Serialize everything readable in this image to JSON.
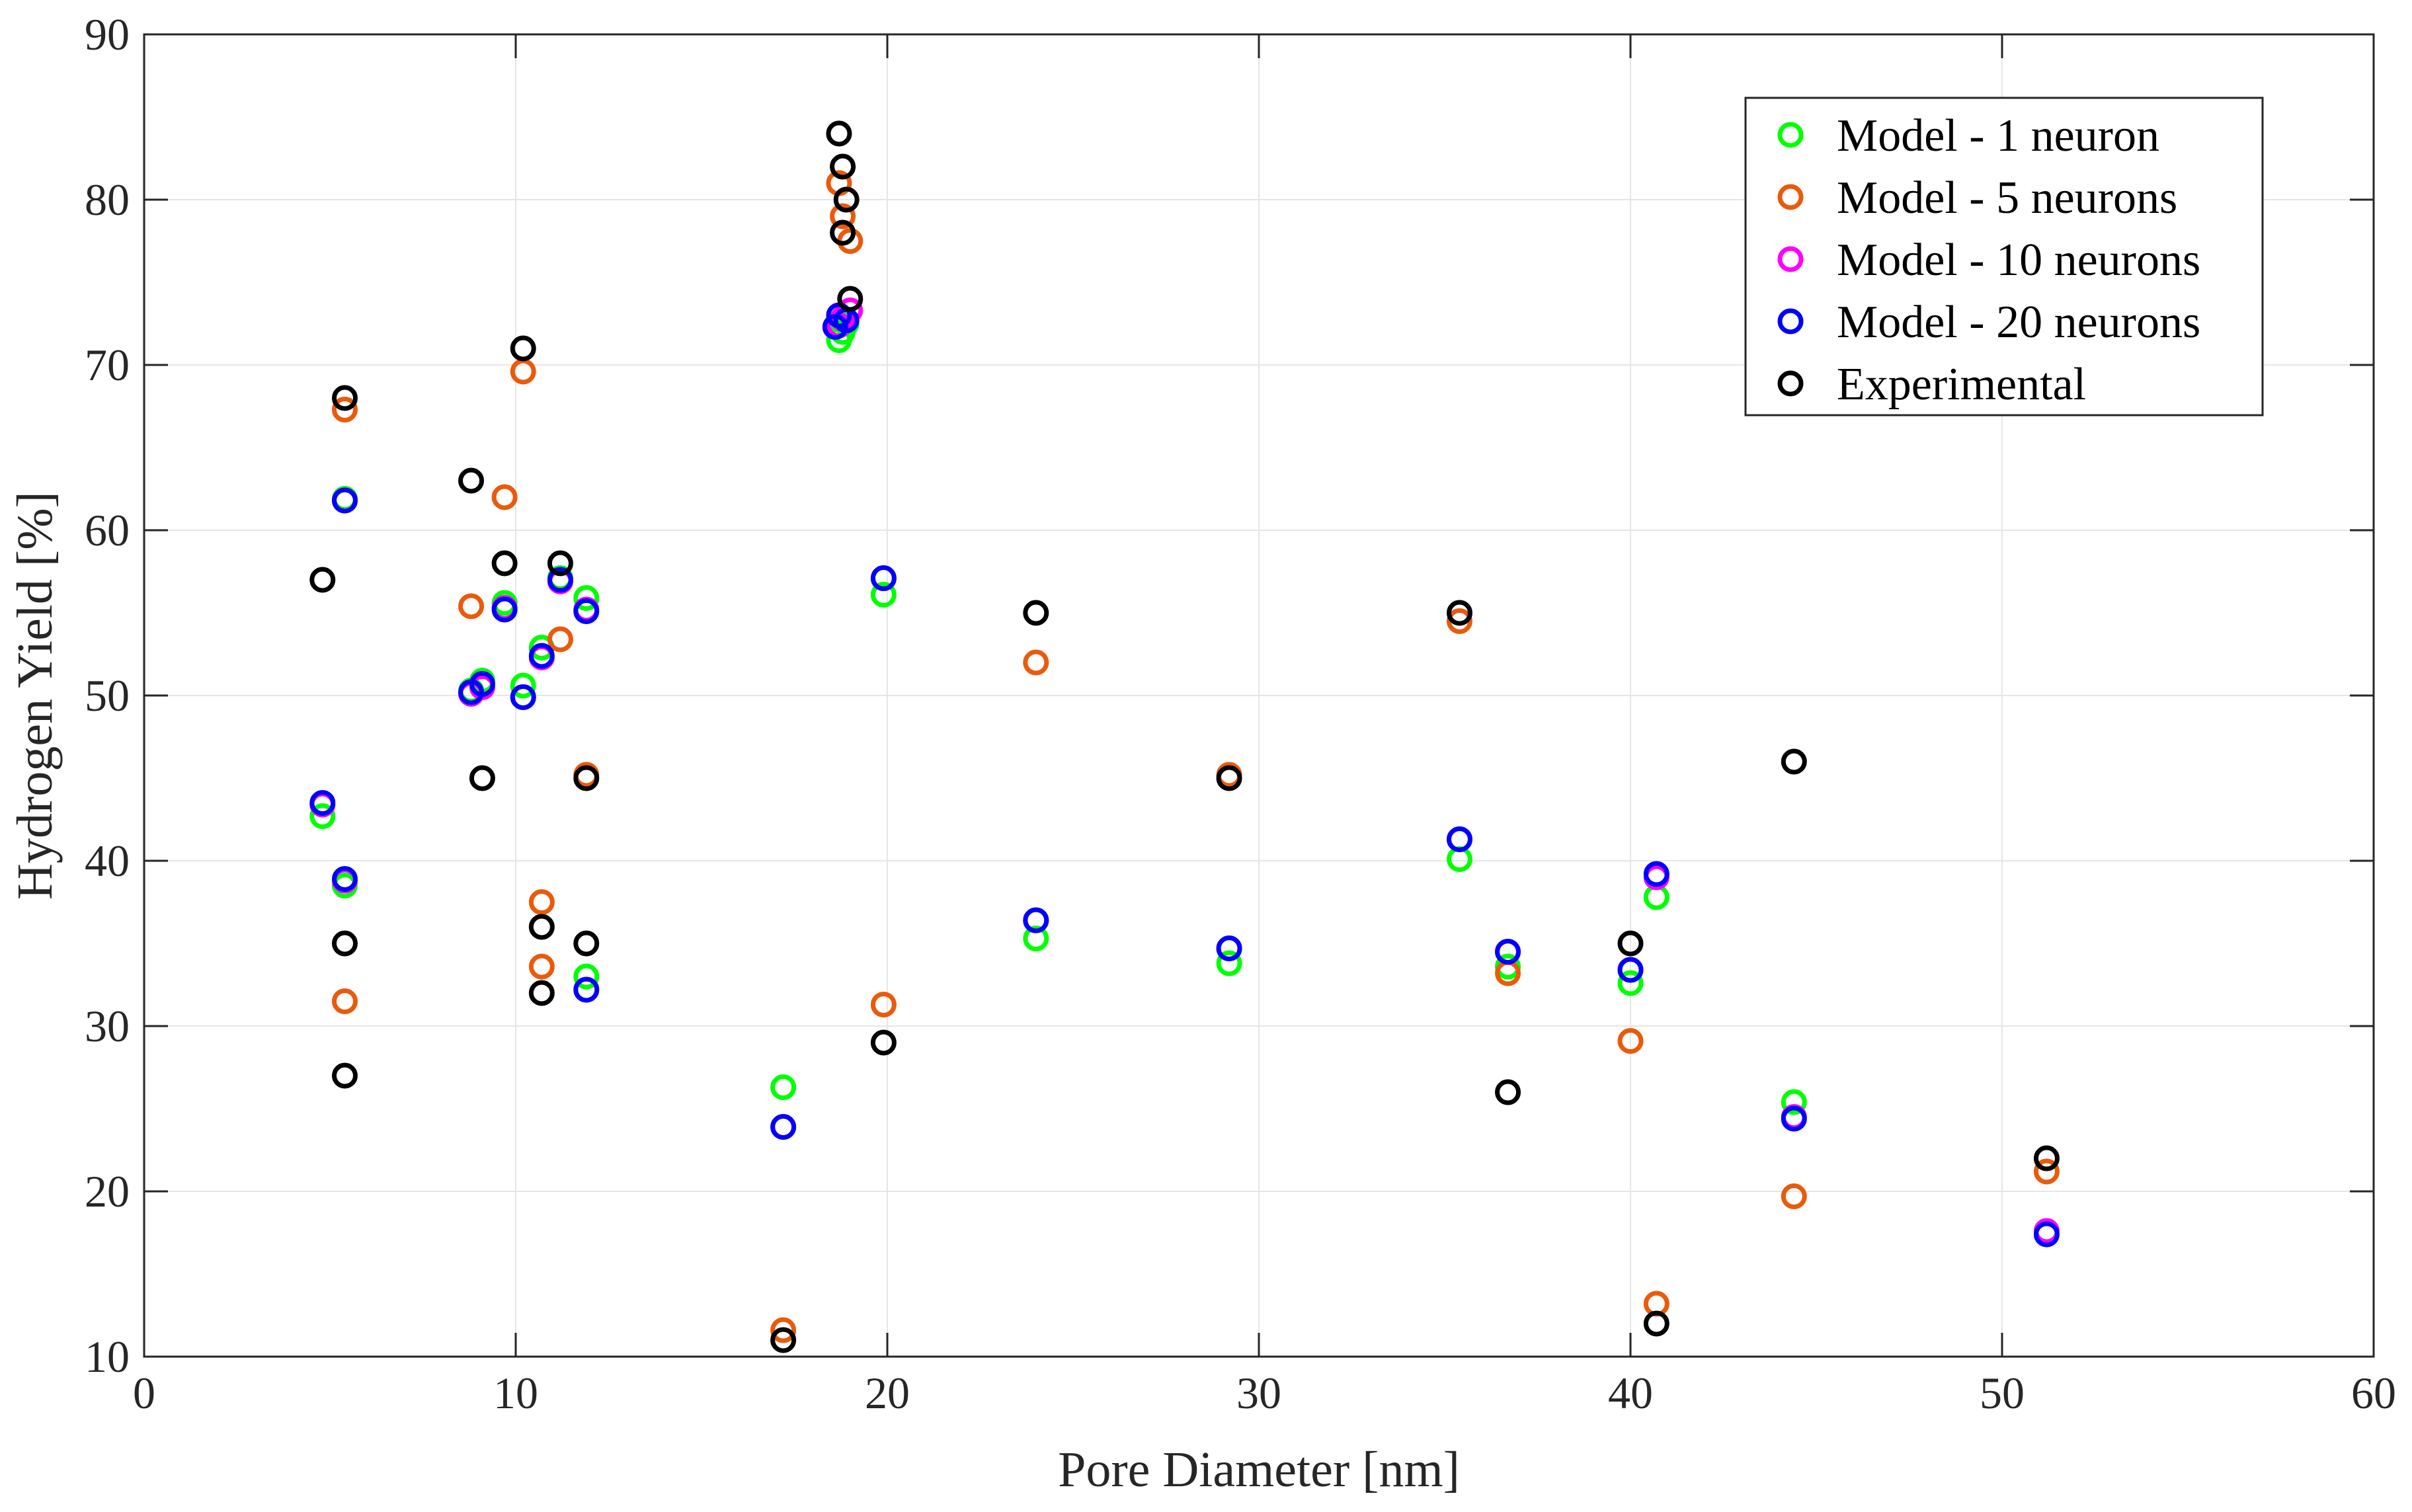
{
  "chart_data": {
    "type": "scatter",
    "title": "",
    "xlabel": "Pore Diameter [nm]",
    "ylabel": "Hydrogen Yield [%]",
    "xlim": [
      0,
      60
    ],
    "ylim": [
      10,
      90
    ],
    "xticks": [
      0,
      10,
      20,
      30,
      40,
      50,
      60
    ],
    "yticks": [
      10,
      20,
      30,
      40,
      50,
      60,
      70,
      80,
      90
    ],
    "xtick_labels": [
      "0",
      "10",
      "20",
      "30",
      "40",
      "50",
      "60"
    ],
    "ytick_labels": [
      "10",
      "20",
      "30",
      "40",
      "50",
      "60",
      "70",
      "80",
      "90"
    ],
    "grid": true,
    "legend_position": "top-right",
    "series": [
      {
        "name": "Model - 1 neuron",
        "color": "#00ff00",
        "points": [
          [
            4.8,
            42.7
          ],
          [
            5.4,
            38.5
          ],
          [
            5.4,
            61.9
          ],
          [
            8.8,
            50.3
          ],
          [
            9.1,
            50.9
          ],
          [
            9.7,
            55.6
          ],
          [
            10.2,
            50.6
          ],
          [
            10.7,
            52.9
          ],
          [
            11.2,
            57.1
          ],
          [
            11.9,
            55.9
          ],
          [
            11.9,
            33.0
          ],
          [
            17.2,
            26.3
          ],
          [
            18.7,
            71.5
          ],
          [
            18.8,
            72.0
          ],
          [
            18.9,
            72.5
          ],
          [
            19.9,
            56.1
          ],
          [
            24.0,
            35.3
          ],
          [
            29.2,
            33.8
          ],
          [
            35.4,
            40.1
          ],
          [
            36.7,
            33.6
          ],
          [
            40.0,
            32.6
          ],
          [
            40.7,
            37.8
          ],
          [
            44.4,
            25.4
          ],
          [
            51.2,
            17.6
          ]
        ]
      },
      {
        "name": "Model - 5 neurons",
        "color": "#ea5a0b",
        "points": [
          [
            5.4,
            67.3
          ],
          [
            5.4,
            31.5
          ],
          [
            8.8,
            55.4
          ],
          [
            9.7,
            62.0
          ],
          [
            10.2,
            69.6
          ],
          [
            10.7,
            37.5
          ],
          [
            10.7,
            33.6
          ],
          [
            11.2,
            53.4
          ],
          [
            11.9,
            45.2
          ],
          [
            17.2,
            11.6
          ],
          [
            18.7,
            81.0
          ],
          [
            18.8,
            79.0
          ],
          [
            19.0,
            77.5
          ],
          [
            19.9,
            31.3
          ],
          [
            24.0,
            52.0
          ],
          [
            29.2,
            45.2
          ],
          [
            35.4,
            54.5
          ],
          [
            36.7,
            33.2
          ],
          [
            40.0,
            29.1
          ],
          [
            40.7,
            13.2
          ],
          [
            44.4,
            19.7
          ],
          [
            51.2,
            21.2
          ]
        ]
      },
      {
        "name": "Model - 10 neurons",
        "color": "#ff00ff",
        "points": [
          [
            4.8,
            43.4
          ],
          [
            5.4,
            38.8
          ],
          [
            5.4,
            61.8
          ],
          [
            8.8,
            50.1
          ],
          [
            9.1,
            50.5
          ],
          [
            9.7,
            55.3
          ],
          [
            10.2,
            49.9
          ],
          [
            10.7,
            52.3
          ],
          [
            11.2,
            56.9
          ],
          [
            11.9,
            55.2
          ],
          [
            11.9,
            32.2
          ],
          [
            17.2,
            23.9
          ],
          [
            18.7,
            72.4
          ],
          [
            18.8,
            72.8
          ],
          [
            19.0,
            73.3
          ],
          [
            19.9,
            57.1
          ],
          [
            24.0,
            36.4
          ],
          [
            29.2,
            34.7
          ],
          [
            35.4,
            41.3
          ],
          [
            36.7,
            34.5
          ],
          [
            40.0,
            33.4
          ],
          [
            40.7,
            39.0
          ],
          [
            44.4,
            24.5
          ],
          [
            51.2,
            17.6
          ]
        ]
      },
      {
        "name": "Model - 20 neurons",
        "color": "#0000ff",
        "points": [
          [
            4.8,
            43.5
          ],
          [
            5.4,
            38.9
          ],
          [
            5.4,
            61.8
          ],
          [
            8.8,
            50.2
          ],
          [
            9.1,
            50.7
          ],
          [
            9.7,
            55.2
          ],
          [
            10.2,
            49.9
          ],
          [
            10.7,
            52.4
          ],
          [
            11.2,
            57.0
          ],
          [
            11.9,
            55.1
          ],
          [
            11.9,
            32.2
          ],
          [
            17.2,
            23.9
          ],
          [
            18.6,
            72.3
          ],
          [
            18.7,
            73.0
          ],
          [
            18.9,
            72.7
          ],
          [
            19.9,
            57.1
          ],
          [
            24.0,
            36.4
          ],
          [
            29.2,
            34.7
          ],
          [
            35.4,
            41.3
          ],
          [
            36.7,
            34.5
          ],
          [
            40.0,
            33.4
          ],
          [
            40.7,
            39.2
          ],
          [
            44.4,
            24.4
          ],
          [
            51.2,
            17.4
          ]
        ]
      },
      {
        "name": "Experimental",
        "color": "#000000",
        "points": [
          [
            4.8,
            57.0
          ],
          [
            5.4,
            68.0
          ],
          [
            5.4,
            35.0
          ],
          [
            5.4,
            27.0
          ],
          [
            8.8,
            63.0
          ],
          [
            9.1,
            45.0
          ],
          [
            9.7,
            58.0
          ],
          [
            10.2,
            71.0
          ],
          [
            10.7,
            36.0
          ],
          [
            10.7,
            32.0
          ],
          [
            11.2,
            58.0
          ],
          [
            11.9,
            45.0
          ],
          [
            11.9,
            35.0
          ],
          [
            17.2,
            11.0
          ],
          [
            18.7,
            84.0
          ],
          [
            18.8,
            82.0
          ],
          [
            18.9,
            80.0
          ],
          [
            18.8,
            78.0
          ],
          [
            19.0,
            74.0
          ],
          [
            19.9,
            29.0
          ],
          [
            24.0,
            55.0
          ],
          [
            29.2,
            45.0
          ],
          [
            35.4,
            55.0
          ],
          [
            36.7,
            26.0
          ],
          [
            40.0,
            35.0
          ],
          [
            40.7,
            12.0
          ],
          [
            44.4,
            46.0
          ],
          [
            51.2,
            22.0
          ]
        ]
      }
    ]
  }
}
